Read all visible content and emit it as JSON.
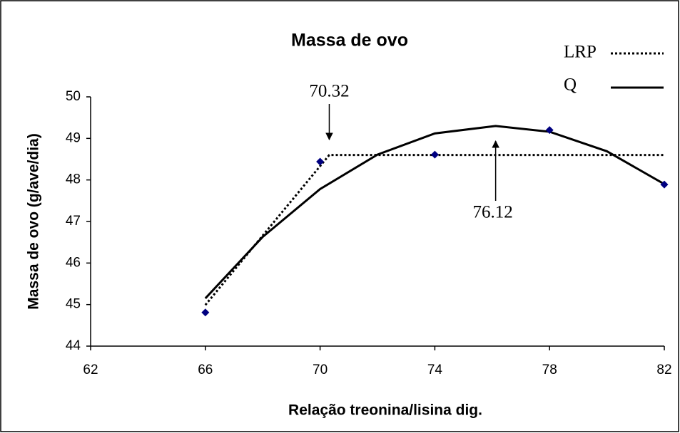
{
  "chart_data": {
    "type": "scatter",
    "title": "Massa de ovo",
    "xlabel": "Relação treonina/lisina dig.",
    "ylabel": "Massa de ovo (g/ave/dia)",
    "x": [
      66,
      70,
      74,
      78,
      82
    ],
    "values": [
      44.81,
      48.44,
      48.61,
      49.2,
      47.89
    ],
    "color": "#000080",
    "series": [
      {
        "name": "LRP",
        "color": "#000000",
        "style": "dotted",
        "x": [
          66,
          70.32,
          82
        ],
        "values": [
          44.99,
          48.6,
          48.6
        ]
      },
      {
        "name": "Q",
        "color": "#000000",
        "style": "solid",
        "x": [
          66,
          68,
          70,
          72,
          74,
          76.12,
          78,
          80,
          82
        ],
        "values": [
          45.15,
          46.63,
          47.78,
          48.61,
          49.12,
          49.3,
          49.16,
          48.69,
          47.9
        ]
      }
    ],
    "annotations": [
      {
        "text": "70.32",
        "x": 70.32,
        "direction": "down"
      },
      {
        "text": "76.12",
        "x": 76.12,
        "direction": "up"
      }
    ],
    "xlim": [
      62,
      82
    ],
    "xticks": [
      62,
      66,
      70,
      74,
      78,
      82
    ],
    "ylim": [
      44,
      50
    ],
    "yticks": [
      44,
      45,
      46,
      47,
      48,
      49,
      50
    ],
    "legend": "top-right",
    "grid": false
  }
}
